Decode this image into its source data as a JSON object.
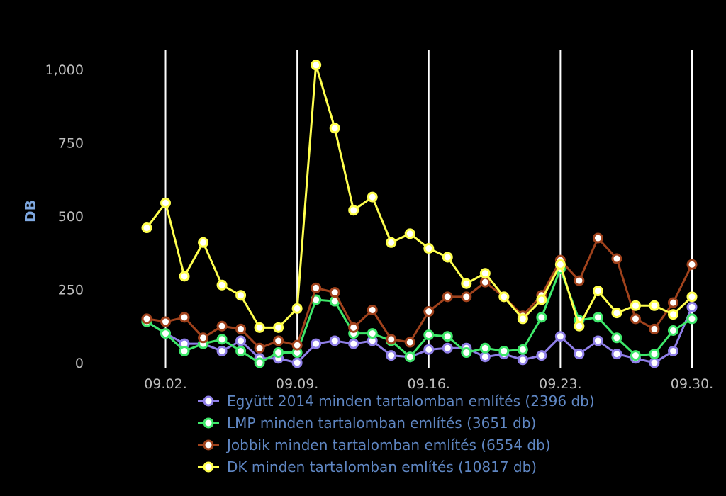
{
  "chart_data": {
    "type": "line",
    "ylabel": "DB",
    "ylim": [
      0,
      1050
    ],
    "yticks": [
      0,
      250,
      500,
      750,
      1000
    ],
    "ytick_labels": [
      "0",
      "250",
      "500",
      "750",
      "1,000"
    ],
    "x": [
      "2014-09-01",
      "2014-09-02",
      "2014-09-03",
      "2014-09-04",
      "2014-09-05",
      "2014-09-06",
      "2014-09-07",
      "2014-09-08",
      "2014-09-09",
      "2014-09-10",
      "2014-09-11",
      "2014-09-12",
      "2014-09-13",
      "2014-09-14",
      "2014-09-15",
      "2014-09-16",
      "2014-09-17",
      "2014-09-18",
      "2014-09-19",
      "2014-09-20",
      "2014-09-21",
      "2014-09-22",
      "2014-09-23",
      "2014-09-24",
      "2014-09-25",
      "2014-09-26",
      "2014-09-27",
      "2014-09-28",
      "2014-09-29",
      "2014-09-30"
    ],
    "xtick_labels": [
      "09.02.",
      "09.09.",
      "09.16.",
      "09.23.",
      "09.30."
    ],
    "grid": "vertical",
    "legend_position": "bottom",
    "series": [
      {
        "name": "Együtt 2014 minden tartalomban említés (2396 db)",
        "color": "#8f7fe8",
        "values": [
          140,
          100,
          65,
          65,
          40,
          75,
          15,
          15,
          0,
          65,
          75,
          65,
          75,
          25,
          20,
          45,
          50,
          50,
          20,
          30,
          10,
          25,
          90,
          30,
          75,
          30,
          15,
          0,
          40,
          190
        ]
      },
      {
        "name": "LMP minden tartalomban említés (3651 db)",
        "color": "#3ee86a",
        "values": [
          140,
          100,
          40,
          65,
          80,
          40,
          0,
          35,
          35,
          215,
          210,
          100,
          100,
          75,
          20,
          95,
          90,
          35,
          50,
          40,
          45,
          155,
          320,
          145,
          155,
          85,
          25,
          30,
          110,
          150
        ]
      },
      {
        "name": "Jobbik minden tartalomban említés (6554 db)",
        "color": "#a0421c",
        "values": [
          150,
          140,
          155,
          85,
          125,
          115,
          50,
          75,
          60,
          255,
          240,
          120,
          180,
          80,
          70,
          175,
          225,
          225,
          275,
          225,
          160,
          230,
          350,
          280,
          425,
          355,
          150,
          115,
          205,
          335
        ]
      },
      {
        "name": "DK minden tartalomban említés (10817 db)",
        "color": "#ffff4d",
        "values": [
          460,
          545,
          295,
          410,
          265,
          230,
          120,
          120,
          185,
          1015,
          800,
          520,
          565,
          410,
          440,
          390,
          360,
          270,
          305,
          225,
          150,
          215,
          335,
          125,
          245,
          170,
          195,
          195,
          165,
          225
        ]
      }
    ]
  }
}
